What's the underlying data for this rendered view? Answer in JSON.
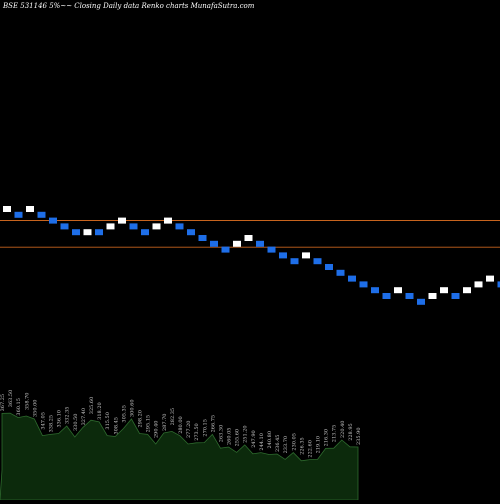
{
  "chart_data": {
    "type": "renko",
    "title": "BSE 531146  5%~~  Closing Daily data  Renko  charts MunafaSutra.com",
    "colors": {
      "background": "#000000",
      "up_brick": "#ffffff",
      "down_brick": "#1e6ee8",
      "reference_line": "#c8641e",
      "volume_fill": "#0c2a0c",
      "volume_line": "#2e6b2e",
      "label": "#cccccc"
    },
    "bricks": [
      {
        "direction": "up",
        "level": 0
      },
      {
        "direction": "down",
        "level": 1
      },
      {
        "direction": "up",
        "level": 0
      },
      {
        "direction": "down",
        "level": 1
      },
      {
        "direction": "down",
        "level": 2
      },
      {
        "direction": "down",
        "level": 3
      },
      {
        "direction": "down",
        "level": 4
      },
      {
        "direction": "up",
        "level": 4
      },
      {
        "direction": "down",
        "level": 4
      },
      {
        "direction": "up",
        "level": 3
      },
      {
        "direction": "up",
        "level": 2
      },
      {
        "direction": "down",
        "level": 3
      },
      {
        "direction": "down",
        "level": 4
      },
      {
        "direction": "up",
        "level": 3
      },
      {
        "direction": "up",
        "level": 2
      },
      {
        "direction": "down",
        "level": 3
      },
      {
        "direction": "down",
        "level": 4
      },
      {
        "direction": "down",
        "level": 5
      },
      {
        "direction": "down",
        "level": 6
      },
      {
        "direction": "down",
        "level": 7
      },
      {
        "direction": "up",
        "level": 6
      },
      {
        "direction": "up",
        "level": 5
      },
      {
        "direction": "down",
        "level": 6
      },
      {
        "direction": "down",
        "level": 7
      },
      {
        "direction": "down",
        "level": 8
      },
      {
        "direction": "down",
        "level": 9
      },
      {
        "direction": "up",
        "level": 8
      },
      {
        "direction": "down",
        "level": 9
      },
      {
        "direction": "down",
        "level": 10
      },
      {
        "direction": "down",
        "level": 11
      },
      {
        "direction": "down",
        "level": 12
      },
      {
        "direction": "down",
        "level": 13
      },
      {
        "direction": "down",
        "level": 14
      },
      {
        "direction": "down",
        "level": 15
      },
      {
        "direction": "up",
        "level": 14
      },
      {
        "direction": "down",
        "level": 15
      },
      {
        "direction": "down",
        "level": 16
      },
      {
        "direction": "up",
        "level": 15
      },
      {
        "direction": "up",
        "level": 14
      },
      {
        "direction": "down",
        "level": 15
      },
      {
        "direction": "up",
        "level": 14
      },
      {
        "direction": "up",
        "level": 13
      },
      {
        "direction": "up",
        "level": 12
      },
      {
        "direction": "down",
        "level": 13
      },
      {
        "direction": "down",
        "level": 14
      }
    ],
    "reference_levels": [
      2.5,
      7.1
    ],
    "volume_labels": [
      "367.25",
      "363.50",
      "360.15",
      "358.70",
      "350.00",
      "347.05",
      "338.25",
      "336.10",
      "332.35",
      "330.50",
      "327.40",
      "325.60",
      "318.20",
      "315.50",
      "308.45",
      "305.35",
      "300.60",
      "298.20",
      "295.15",
      "290.40",
      "287.70",
      "282.35",
      "280.00",
      "277.20",
      "273.50",
      "270.15",
      "266.75",
      "263.30",
      "260.05",
      "255.60",
      "251.20",
      "247.90",
      "244.10",
      "240.80",
      "236.45",
      "233.70",
      "230.05",
      "226.35",
      "222.60",
      "219.10",
      "216.30",
      "213.75",
      "220.40",
      "228.95",
      "235.90"
    ],
    "volume_values": [
      0.78,
      0.84,
      0.72,
      0.8,
      0.7,
      0.52,
      0.48,
      0.55,
      0.6,
      0.5,
      0.58,
      0.74,
      0.66,
      0.52,
      0.45,
      0.62,
      0.7,
      0.55,
      0.48,
      0.4,
      0.5,
      0.58,
      0.46,
      0.4,
      0.36,
      0.42,
      0.48,
      0.34,
      0.3,
      0.28,
      0.33,
      0.26,
      0.22,
      0.25,
      0.2,
      0.18,
      0.22,
      0.16,
      0.12,
      0.18,
      0.28,
      0.34,
      0.4,
      0.36,
      0.3
    ]
  }
}
